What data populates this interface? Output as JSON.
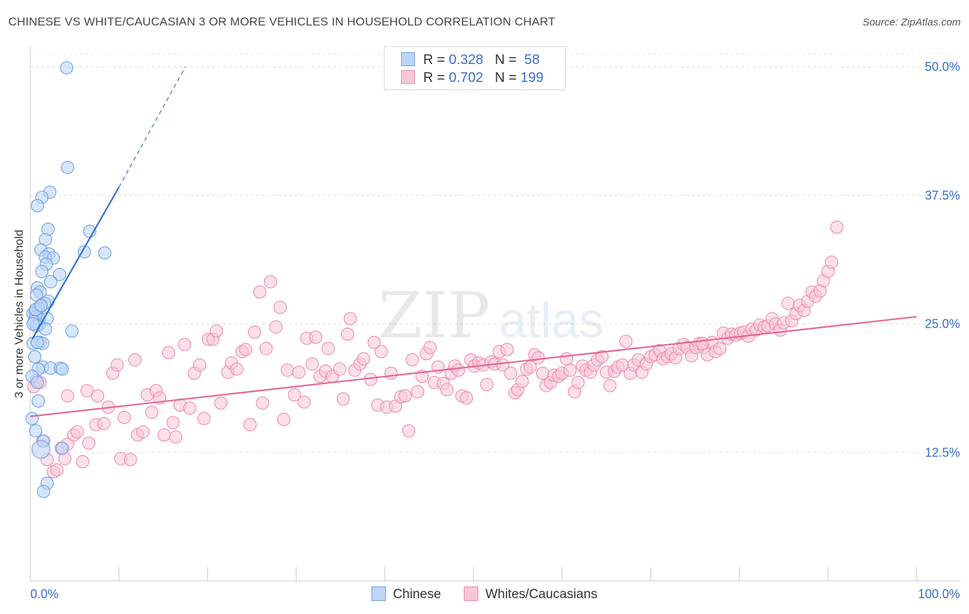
{
  "title": "CHINESE VS WHITE/CAUCASIAN 3 OR MORE VEHICLES IN HOUSEHOLD CORRELATION CHART",
  "source": "Source: ZipAtlas.com",
  "watermark": {
    "zip": "ZIP",
    "atlas": "atlas"
  },
  "legend": {
    "r_label": "R =",
    "n_label": "N =",
    "rows": [
      {
        "name": "Chinese",
        "r": "0.328",
        "n": "58"
      },
      {
        "name": "Whites/Caucasians",
        "r": "0.702",
        "n": "199"
      }
    ]
  },
  "colors": {
    "chinese_fill": "#bdd5f6",
    "chinese_stroke": "#6b9ee0",
    "chinese_line": "#2c6fcf",
    "white_fill": "#f8c6d6",
    "white_stroke": "#ec8aab",
    "white_line": "#e2678f",
    "tick_label": "#3a6fc9"
  },
  "chart_data": {
    "type": "scatter",
    "title": "CHINESE VS WHITE/CAUCASIAN 3 OR MORE VEHICLES IN HOUSEHOLD CORRELATION CHART",
    "xlabel": "",
    "ylabel": "3 or more Vehicles in Household",
    "xlim": [
      0,
      100
    ],
    "ylim": [
      0,
      52
    ],
    "x_tick_labels": [
      "0.0%",
      "100.0%"
    ],
    "y_ticks": [
      12.5,
      25.0,
      37.5,
      50.0
    ],
    "y_tick_labels": [
      "12.5%",
      "25.0%",
      "37.5%",
      "50.0%"
    ],
    "grid": true,
    "legend_position": "top-center",
    "series": [
      {
        "name": "Chinese",
        "r": 0.328,
        "n": 58,
        "trend": {
          "x0": 0.2,
          "y0": 23.5,
          "x1": 10.0,
          "y1": 38.3,
          "dash_x1": 17.5,
          "dash_y1": 50.0
        },
        "points": [
          [
            4.1,
            49.9
          ],
          [
            4.2,
            40.2
          ],
          [
            2.2,
            37.8
          ],
          [
            1.3,
            37.3
          ],
          [
            0.8,
            36.5
          ],
          [
            2.0,
            34.2
          ],
          [
            6.7,
            34.0
          ],
          [
            1.7,
            33.2
          ],
          [
            1.2,
            32.2
          ],
          [
            6.1,
            32.0
          ],
          [
            8.4,
            31.9
          ],
          [
            2.1,
            31.8
          ],
          [
            1.7,
            31.5
          ],
          [
            2.6,
            31.4
          ],
          [
            1.8,
            30.8
          ],
          [
            1.3,
            30.1
          ],
          [
            3.3,
            29.8
          ],
          [
            2.3,
            29.1
          ],
          [
            0.8,
            28.5
          ],
          [
            1.1,
            28.1
          ],
          [
            0.7,
            27.8
          ],
          [
            2.0,
            27.2
          ],
          [
            1.6,
            27.0
          ],
          [
            1.2,
            26.7
          ],
          [
            0.9,
            26.5
          ],
          [
            0.5,
            26.2
          ],
          [
            0.3,
            26.0
          ],
          [
            0.6,
            25.7
          ],
          [
            1.0,
            25.5
          ],
          [
            1.9,
            25.5
          ],
          [
            0.4,
            25.2
          ],
          [
            1.0,
            24.9
          ],
          [
            0.7,
            24.8
          ],
          [
            1.7,
            24.5
          ],
          [
            4.7,
            24.3
          ],
          [
            1.1,
            23.2
          ],
          [
            0.3,
            23.1
          ],
          [
            1.4,
            23.1
          ],
          [
            0.5,
            21.8
          ],
          [
            1.4,
            20.8
          ],
          [
            2.3,
            20.7
          ],
          [
            3.4,
            20.7
          ],
          [
            0.9,
            20.6
          ],
          [
            3.6,
            20.6
          ],
          [
            0.2,
            19.9
          ],
          [
            0.8,
            19.3
          ],
          [
            0.9,
            17.5
          ],
          [
            0.2,
            15.8
          ],
          [
            0.6,
            14.6
          ],
          [
            1.5,
            13.6
          ],
          [
            3.6,
            12.9
          ],
          [
            1.2,
            12.8
          ],
          [
            1.9,
            9.5
          ],
          [
            1.5,
            8.7
          ],
          [
            0.3,
            25.0
          ],
          [
            0.6,
            26.4
          ],
          [
            0.8,
            23.2
          ],
          [
            1.2,
            26.8
          ]
        ]
      },
      {
        "name": "Whites/Caucasians",
        "r": 0.702,
        "n": 199,
        "trend": {
          "x0": 0.0,
          "y0": 16.0,
          "x1": 100.0,
          "y1": 25.7
        },
        "points": [
          [
            0.7,
            19.5
          ],
          [
            0.4,
            18.9
          ],
          [
            1.1,
            19.3
          ],
          [
            1.4,
            13.6
          ],
          [
            1.9,
            11.8
          ],
          [
            2.6,
            10.6
          ],
          [
            3.0,
            10.8
          ],
          [
            3.5,
            12.9
          ],
          [
            3.9,
            11.9
          ],
          [
            4.2,
            13.3
          ],
          [
            4.2,
            18.0
          ],
          [
            4.9,
            14.2
          ],
          [
            5.3,
            14.5
          ],
          [
            5.9,
            11.6
          ],
          [
            6.4,
            18.5
          ],
          [
            6.6,
            13.4
          ],
          [
            7.4,
            15.2
          ],
          [
            7.6,
            18.0
          ],
          [
            8.3,
            15.3
          ],
          [
            8.8,
            16.9
          ],
          [
            9.3,
            20.2
          ],
          [
            9.8,
            21.0
          ],
          [
            10.2,
            11.9
          ],
          [
            10.6,
            15.9
          ],
          [
            11.3,
            11.8
          ],
          [
            11.8,
            21.5
          ],
          [
            12.1,
            14.2
          ],
          [
            12.7,
            14.5
          ],
          [
            13.2,
            18.1
          ],
          [
            13.7,
            16.4
          ],
          [
            14.2,
            18.5
          ],
          [
            14.6,
            17.8
          ],
          [
            15.1,
            14.2
          ],
          [
            15.6,
            22.2
          ],
          [
            16.1,
            15.4
          ],
          [
            16.4,
            14.0
          ],
          [
            16.9,
            17.1
          ],
          [
            17.4,
            23.0
          ],
          [
            18.0,
            16.8
          ],
          [
            18.5,
            20.2
          ],
          [
            19.1,
            21.0
          ],
          [
            19.6,
            15.8
          ],
          [
            20.1,
            23.5
          ],
          [
            20.6,
            23.5
          ],
          [
            21.0,
            24.3
          ],
          [
            21.5,
            17.3
          ],
          [
            22.3,
            20.3
          ],
          [
            22.7,
            21.2
          ],
          [
            23.3,
            20.6
          ],
          [
            23.9,
            22.3
          ],
          [
            24.3,
            22.5
          ],
          [
            24.8,
            15.2
          ],
          [
            25.3,
            24.2
          ],
          [
            25.9,
            28.1
          ],
          [
            26.2,
            17.3
          ],
          [
            26.6,
            22.6
          ],
          [
            27.1,
            29.1
          ],
          [
            27.7,
            24.7
          ],
          [
            28.2,
            26.6
          ],
          [
            28.6,
            15.7
          ],
          [
            29.0,
            20.5
          ],
          [
            29.8,
            18.1
          ],
          [
            30.3,
            20.3
          ],
          [
            30.9,
            17.4
          ],
          [
            31.2,
            23.6
          ],
          [
            31.8,
            21.1
          ],
          [
            32.2,
            23.7
          ],
          [
            32.7,
            19.9
          ],
          [
            33.3,
            20.4
          ],
          [
            33.6,
            22.6
          ],
          [
            34.1,
            19.9
          ],
          [
            34.9,
            20.6
          ],
          [
            35.3,
            17.7
          ],
          [
            35.8,
            24.0
          ],
          [
            36.1,
            25.5
          ],
          [
            36.6,
            20.5
          ],
          [
            37.2,
            21.1
          ],
          [
            37.6,
            21.6
          ],
          [
            38.4,
            19.6
          ],
          [
            38.8,
            23.2
          ],
          [
            39.2,
            17.1
          ],
          [
            39.6,
            22.3
          ],
          [
            40.2,
            16.9
          ],
          [
            40.7,
            20.2
          ],
          [
            41.2,
            17.0
          ],
          [
            41.8,
            17.9
          ],
          [
            42.3,
            18.0
          ],
          [
            42.7,
            14.6
          ],
          [
            43.1,
            21.5
          ],
          [
            43.7,
            18.4
          ],
          [
            44.2,
            19.9
          ],
          [
            44.7,
            22.1
          ],
          [
            45.1,
            22.7
          ],
          [
            45.6,
            19.3
          ],
          [
            46.0,
            20.8
          ],
          [
            46.6,
            19.2
          ],
          [
            47.0,
            18.6
          ],
          [
            47.5,
            20.2
          ],
          [
            47.9,
            20.9
          ],
          [
            48.3,
            20.5
          ],
          [
            48.7,
            18.0
          ],
          [
            49.2,
            17.8
          ],
          [
            49.7,
            21.5
          ],
          [
            50.1,
            20.9
          ],
          [
            50.6,
            21.2
          ],
          [
            51.1,
            21.0
          ],
          [
            51.5,
            19.1
          ],
          [
            52.0,
            21.3
          ],
          [
            52.4,
            21.1
          ],
          [
            52.9,
            22.3
          ],
          [
            53.3,
            21.0
          ],
          [
            53.8,
            22.5
          ],
          [
            54.2,
            20.2
          ],
          [
            54.7,
            18.3
          ],
          [
            55.0,
            18.6
          ],
          [
            55.5,
            19.4
          ],
          [
            56.0,
            20.6
          ],
          [
            56.4,
            20.8
          ],
          [
            56.9,
            22.0
          ],
          [
            57.3,
            21.7
          ],
          [
            57.8,
            20.2
          ],
          [
            58.2,
            19.0
          ],
          [
            58.7,
            19.3
          ],
          [
            59.1,
            20.0
          ],
          [
            59.6,
            19.9
          ],
          [
            60.0,
            20.2
          ],
          [
            60.5,
            21.6
          ],
          [
            60.9,
            20.5
          ],
          [
            61.4,
            18.4
          ],
          [
            61.8,
            19.3
          ],
          [
            62.3,
            20.9
          ],
          [
            62.7,
            20.5
          ],
          [
            63.2,
            20.3
          ],
          [
            63.6,
            21.0
          ],
          [
            64.0,
            21.5
          ],
          [
            64.5,
            21.8
          ],
          [
            65.0,
            20.3
          ],
          [
            65.4,
            19.0
          ],
          [
            65.9,
            20.4
          ],
          [
            66.3,
            20.8
          ],
          [
            66.8,
            21.0
          ],
          [
            67.2,
            23.3
          ],
          [
            67.7,
            20.2
          ],
          [
            68.1,
            21.0
          ],
          [
            68.6,
            21.5
          ],
          [
            69.0,
            20.3
          ],
          [
            69.5,
            21.1
          ],
          [
            70.0,
            21.8
          ],
          [
            70.5,
            22.0
          ],
          [
            71.0,
            22.4
          ],
          [
            71.4,
            21.6
          ],
          [
            71.9,
            21.8
          ],
          [
            72.3,
            22.1
          ],
          [
            72.8,
            21.7
          ],
          [
            73.2,
            22.6
          ],
          [
            73.7,
            23.0
          ],
          [
            74.1,
            22.7
          ],
          [
            74.6,
            21.9
          ],
          [
            75.1,
            22.7
          ],
          [
            75.5,
            23.1
          ],
          [
            76.0,
            22.7
          ],
          [
            76.4,
            22.0
          ],
          [
            76.9,
            23.2
          ],
          [
            77.3,
            22.3
          ],
          [
            77.8,
            22.6
          ],
          [
            78.2,
            24.1
          ],
          [
            78.7,
            23.6
          ],
          [
            79.1,
            24.0
          ],
          [
            79.6,
            23.9
          ],
          [
            80.1,
            24.1
          ],
          [
            80.5,
            24.2
          ],
          [
            81.0,
            23.8
          ],
          [
            81.4,
            24.5
          ],
          [
            81.9,
            24.4
          ],
          [
            82.3,
            24.9
          ],
          [
            82.8,
            24.7
          ],
          [
            83.2,
            24.8
          ],
          [
            83.7,
            25.5
          ],
          [
            84.1,
            25.0
          ],
          [
            84.6,
            24.4
          ],
          [
            85.0,
            25.1
          ],
          [
            85.5,
            27.0
          ],
          [
            85.9,
            25.3
          ],
          [
            86.4,
            26.0
          ],
          [
            86.8,
            26.8
          ],
          [
            87.3,
            26.3
          ],
          [
            87.7,
            27.2
          ],
          [
            88.2,
            28.1
          ],
          [
            88.6,
            27.7
          ],
          [
            89.1,
            28.2
          ],
          [
            89.5,
            29.2
          ],
          [
            90.0,
            30.1
          ],
          [
            90.4,
            31.0
          ],
          [
            91.0,
            34.4
          ],
          [
            75.8,
            23.1
          ]
        ]
      }
    ]
  }
}
